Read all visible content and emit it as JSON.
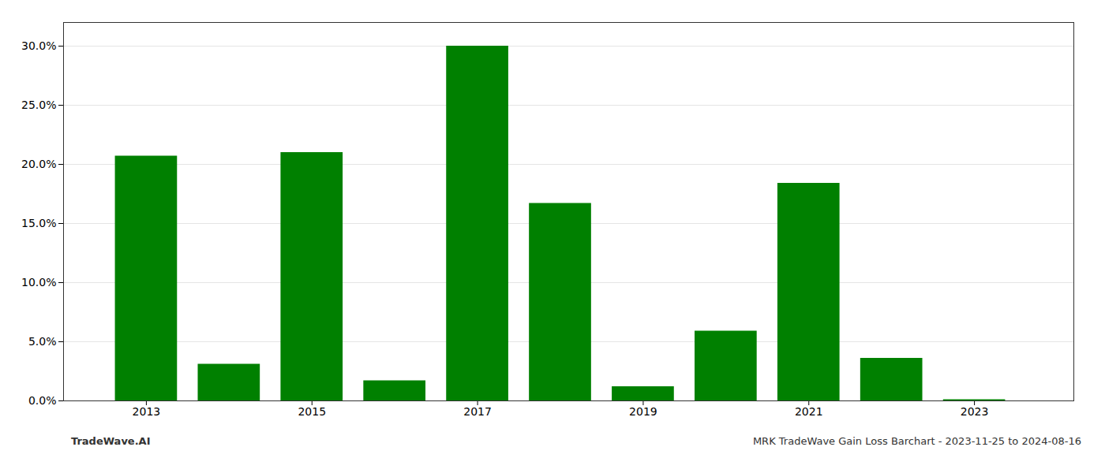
{
  "chart_data": {
    "type": "bar",
    "x": [
      2013,
      2014,
      2015,
      2016,
      2017,
      2018,
      2019,
      2020,
      2021,
      2022,
      2023
    ],
    "values": [
      0.207,
      0.031,
      0.21,
      0.017,
      0.3,
      0.167,
      0.012,
      0.059,
      0.184,
      0.036,
      0.001
    ],
    "color": "#008000",
    "xlim": [
      2012.0,
      2024.2
    ],
    "xticks": [
      2013,
      2015,
      2017,
      2019,
      2021,
      2023
    ],
    "ylim": [
      0,
      0.32
    ],
    "yticks": [
      {
        "value": 0.0,
        "label": "0.0%"
      },
      {
        "value": 0.05,
        "label": "5.0%"
      },
      {
        "value": 0.1,
        "label": "10.0%"
      },
      {
        "value": 0.15,
        "label": "15.0%"
      },
      {
        "value": 0.2,
        "label": "20.0%"
      },
      {
        "value": 0.25,
        "label": "25.0%"
      },
      {
        "value": 0.3,
        "label": "30.0%"
      }
    ],
    "grid": true,
    "annotations": [
      "TradeWave.AI",
      "MRK TradeWave Gain Loss Barchart - 2023-11-25 to 2024-08-16"
    ]
  }
}
